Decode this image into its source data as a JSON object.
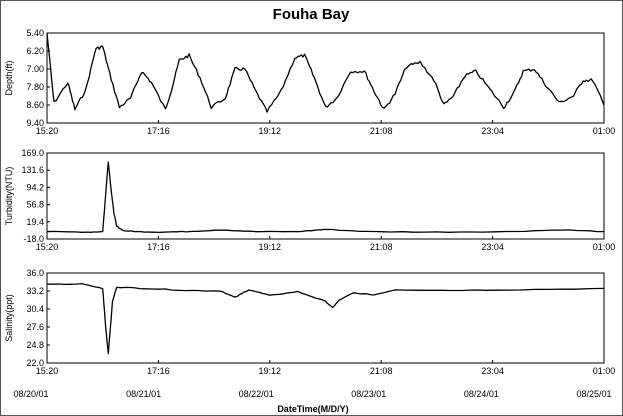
{
  "title": "Fouha Bay",
  "xlabel": "DateTime(M/D/Y)",
  "date_labels": [
    "08/20/01",
    "08/21/01",
    "08/22/01",
    "08/23/01",
    "08/24/01",
    "08/25/01"
  ],
  "chart_data": [
    {
      "type": "line",
      "ylabel": "Depth(ft)",
      "ylim": [
        5.4,
        9.4
      ],
      "y_inverted": true,
      "yticks": [
        "5.40",
        "6.20",
        "7.00",
        "7.80",
        "8.60",
        "9.40"
      ],
      "xticks": [
        "15:20",
        "17:16",
        "19:12",
        "21:08",
        "23:04",
        "01:00"
      ],
      "x_unit": "days since 08/20/01 00:00 (axis runs 08/20/01 to 08/25/01)",
      "x": [
        0.6,
        0.65,
        0.75,
        0.8,
        0.88,
        0.95,
        1.0,
        1.05,
        1.12,
        1.2,
        1.28,
        1.35,
        1.45,
        1.5,
        1.55,
        1.62,
        1.7,
        1.78,
        1.88,
        1.95,
        2.02,
        2.1,
        2.18,
        2.28,
        2.38,
        2.45,
        2.52,
        2.6,
        2.68,
        2.78,
        2.88,
        2.95,
        3.02,
        3.1,
        3.18,
        3.28,
        3.38,
        3.45,
        3.52,
        3.6,
        3.68,
        3.78,
        3.88,
        3.95,
        4.02,
        4.1,
        4.18,
        4.28,
        4.38,
        4.45,
        4.52,
        4.6
      ],
      "y": [
        5.4,
        8.5,
        7.6,
        8.8,
        7.9,
        6.1,
        6.0,
        7.2,
        8.7,
        8.3,
        7.1,
        7.6,
        8.8,
        7.8,
        6.6,
        6.4,
        7.4,
        8.7,
        8.3,
        7.0,
        7.0,
        8.0,
        8.9,
        8.0,
        6.5,
        6.4,
        7.4,
        8.7,
        8.3,
        7.1,
        7.1,
        8.0,
        8.8,
        8.1,
        6.9,
        6.7,
        7.5,
        8.6,
        8.2,
        7.3,
        7.1,
        7.9,
        8.7,
        8.1,
        7.1,
        7.0,
        7.7,
        8.5,
        8.2,
        7.5,
        7.5,
        8.6
      ]
    },
    {
      "type": "line",
      "ylabel": "Turbidity(NTU)",
      "ylim": [
        -18.0,
        169.0
      ],
      "yticks": [
        "169.0",
        "131.6",
        "94.2",
        "56.8",
        "19.4",
        "-18.0"
      ],
      "xticks": [
        "15:20",
        "17:16",
        "19:12",
        "21:08",
        "23:04",
        "01:00"
      ],
      "x_unit": "days since 08/20/01 00:00 (axis runs 08/20/01 to 08/25/01)",
      "x": [
        0.6,
        0.9,
        1.0,
        1.04,
        1.06,
        1.08,
        1.1,
        1.15,
        1.25,
        1.4,
        1.6,
        1.85,
        2.1,
        2.4,
        2.6,
        2.9,
        3.4,
        3.9,
        4.3,
        4.6
      ],
      "y": [
        -2.0,
        -3.0,
        -2.0,
        150.0,
        90.0,
        40.0,
        10.0,
        0.0,
        -2.0,
        -3.0,
        -2.0,
        2.0,
        -2.0,
        -2.0,
        3.0,
        -2.0,
        -3.0,
        -2.0,
        2.0,
        -2.0
      ]
    },
    {
      "type": "line",
      "ylabel": "Salinity(ppt)",
      "ylim": [
        22.0,
        36.0
      ],
      "yticks": [
        "36.0",
        "33.2",
        "30.4",
        "27.6",
        "24.8",
        "22.0"
      ],
      "xticks": [
        "15:20",
        "17:16",
        "19:12",
        "21:08",
        "23:04",
        "01:00"
      ],
      "x_unit": "days since 08/20/01 00:00 (axis runs 08/20/01 to 08/25/01)",
      "x": [
        0.6,
        0.85,
        1.0,
        1.02,
        1.04,
        1.07,
        1.1,
        1.3,
        1.6,
        1.85,
        1.95,
        2.05,
        2.2,
        2.4,
        2.6,
        2.65,
        2.7,
        2.8,
        2.95,
        3.1,
        3.5,
        4.0,
        4.6
      ],
      "y": [
        34.2,
        34.3,
        33.6,
        28.0,
        23.5,
        31.5,
        33.8,
        33.6,
        33.3,
        33.2,
        32.2,
        33.4,
        32.5,
        33.1,
        31.6,
        30.6,
        31.8,
        32.9,
        32.6,
        33.4,
        33.3,
        33.4,
        33.6
      ]
    }
  ]
}
